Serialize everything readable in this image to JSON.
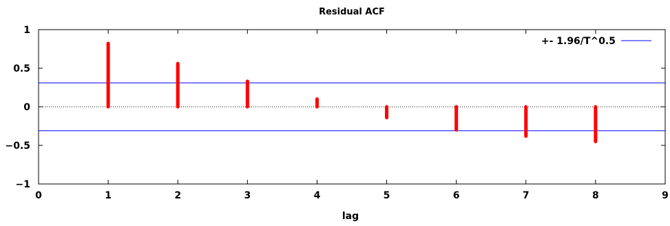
{
  "chart_data": {
    "type": "bar",
    "title": "Residual ACF",
    "xlabel": "lag",
    "ylabel": "",
    "xlim": [
      0,
      9
    ],
    "ylim": [
      -1,
      1
    ],
    "x_ticks": [
      "0",
      "1",
      "2",
      "3",
      "4",
      "5",
      "6",
      "7",
      "8",
      "9"
    ],
    "y_ticks": [
      "1",
      "0.5",
      "0",
      "−0.5",
      "−1"
    ],
    "grid": false,
    "legend_position": "top-right",
    "series": [
      {
        "style": "impulses",
        "color": "#ff0000",
        "x": [
          1,
          2,
          3,
          4,
          5,
          6,
          7,
          8
        ],
        "values": [
          0.82,
          0.56,
          0.33,
          0.1,
          -0.14,
          -0.3,
          -0.38,
          -0.45
        ]
      }
    ],
    "bands": [
      {
        "name": "+- 1.96/T^0.5",
        "color": "#0000ff",
        "values": [
          0.31,
          -0.31
        ]
      }
    ],
    "zero_line": {
      "y": 0,
      "style": "dotted",
      "color": "#000000"
    }
  }
}
